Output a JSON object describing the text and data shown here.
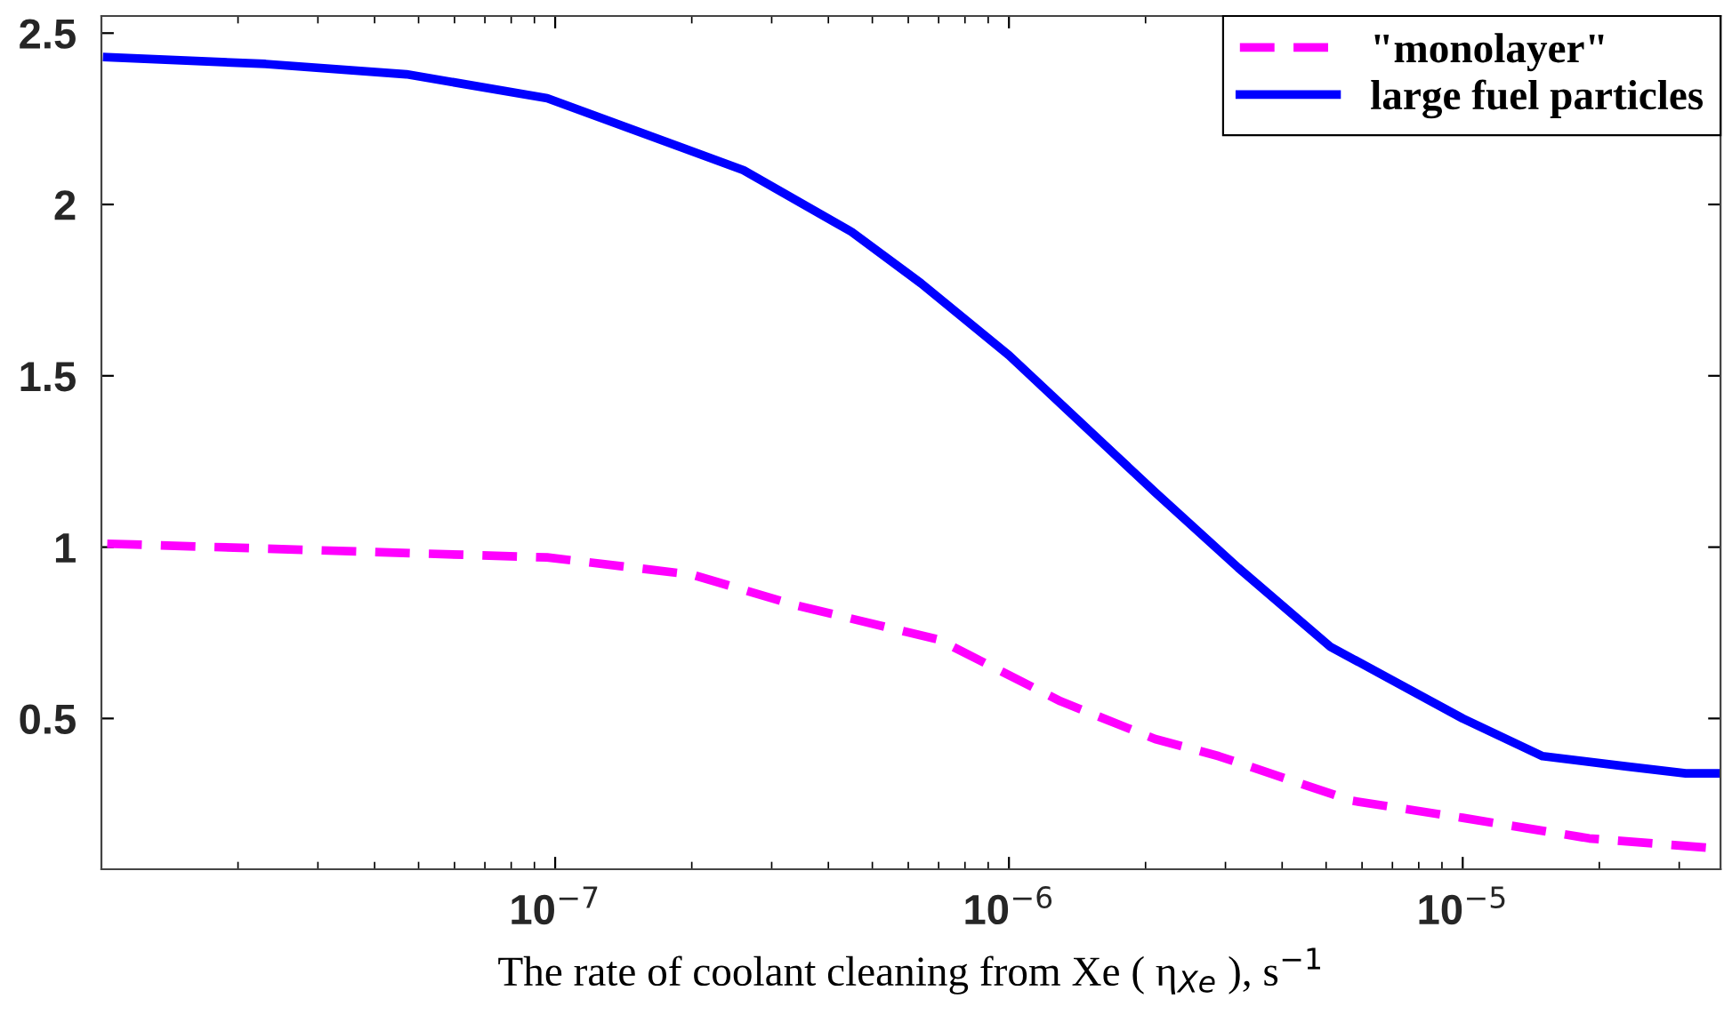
{
  "chart_data": {
    "type": "line",
    "xlabel": "The rate of coolant cleaning from Xe ( η$_{Xe}$ ), s$^{−1}$",
    "log": "x",
    "xlim": [
      1e-08,
      3.7e-05
    ],
    "ylim": [
      0.06,
      2.55
    ],
    "xticks": [
      {
        "value": 1e-07,
        "label": "10$^{−7}$"
      },
      {
        "value": 1e-06,
        "label": "10$^{−6}$"
      },
      {
        "value": 1e-05,
        "label": "10$^{−5}$"
      }
    ],
    "yticks": [
      0.5,
      1,
      1.5,
      2,
      2.5
    ],
    "grid": false,
    "legend": "top right",
    "series": [
      {
        "name": "\"monolayer\"",
        "color": "#ff00ff",
        "line_style": "dashed",
        "x": [
          1.03e-08,
          9.6e-08,
          2e-07,
          3.4e-07,
          7e-07,
          1.3e-06,
          2.1e-06,
          2.9e-06,
          5.7e-06,
          1e-05,
          1.9e-05,
          3.7e-05
        ],
        "values": [
          1.01,
          0.97,
          0.92,
          0.83,
          0.73,
          0.55,
          0.44,
          0.39,
          0.26,
          0.21,
          0.15,
          0.12
        ]
      },
      {
        "name": "large fuel particles",
        "color": "#0000ff",
        "line_style": "solid",
        "x": [
          1.03e-08,
          2.3e-08,
          4.7e-08,
          9.6e-08,
          2.6e-07,
          4.5e-07,
          6.4e-07,
          1e-06,
          2.1e-06,
          3.2e-06,
          5.1e-06,
          1e-05,
          1.5e-05,
          2.3e-05,
          3.1e-05,
          3.7e-05
        ],
        "values": [
          2.43,
          2.41,
          2.38,
          2.31,
          2.1,
          1.92,
          1.77,
          1.56,
          1.16,
          0.94,
          0.71,
          0.5,
          0.39,
          0.36,
          0.34,
          0.34
        ]
      }
    ]
  }
}
